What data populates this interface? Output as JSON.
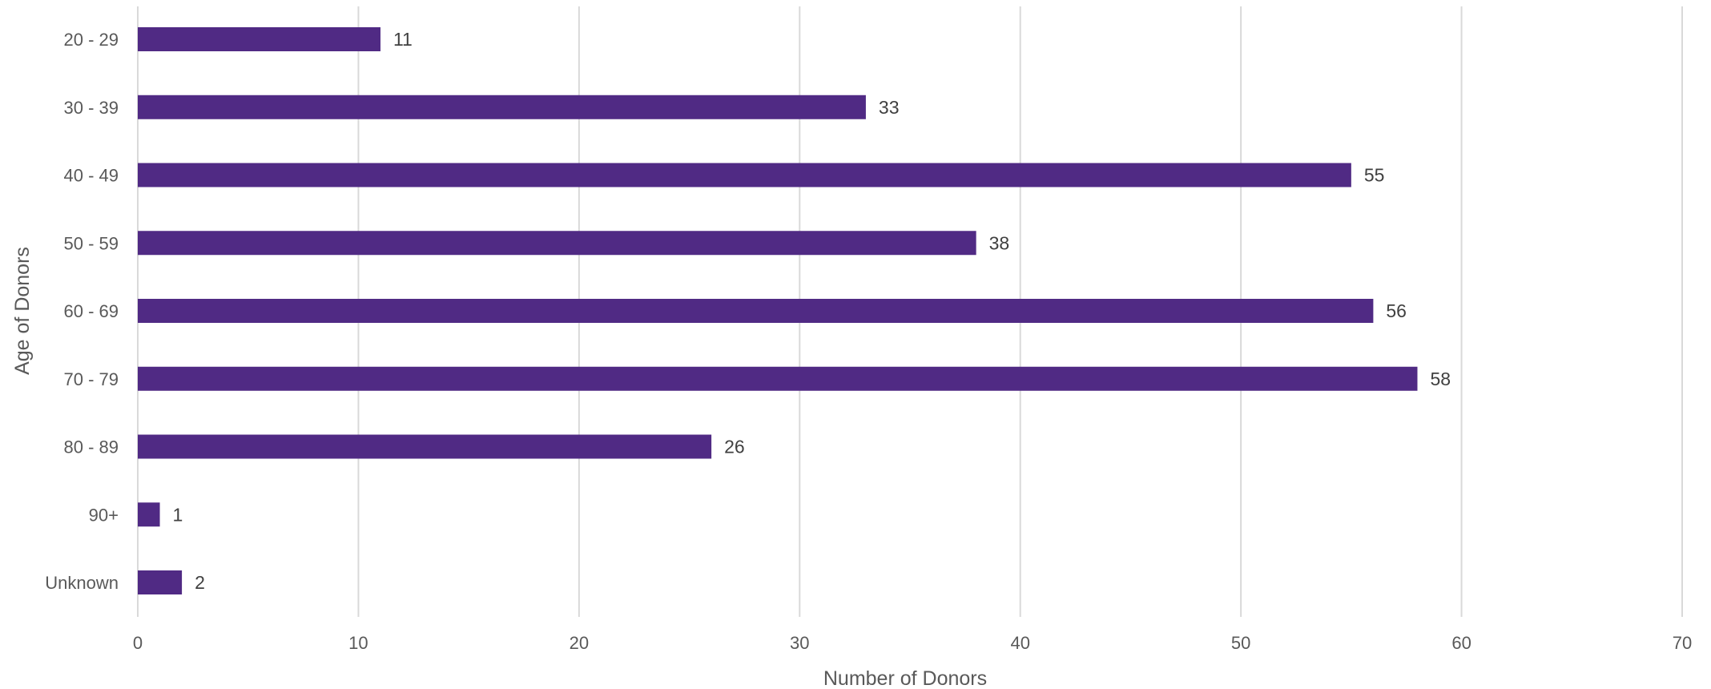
{
  "chart_data": {
    "type": "bar",
    "orientation": "horizontal",
    "title": "",
    "xlabel": "Number of Donors",
    "ylabel": "Age of Donors",
    "categories": [
      "20 - 29",
      "30 - 39",
      "40 - 49",
      "50 - 59",
      "60 - 69",
      "70 - 79",
      "80 - 89",
      "90+",
      "Unknown"
    ],
    "values": [
      11,
      33,
      55,
      38,
      56,
      58,
      26,
      1,
      2
    ],
    "xlim": [
      0,
      70
    ],
    "xticks": [
      0,
      10,
      20,
      30,
      40,
      50,
      60,
      70
    ],
    "grid": "vertical",
    "legend": "none",
    "data_labels": true,
    "colors": {
      "bar": "#502a84",
      "grid": "#d9d9d9",
      "tick_text": "#595959",
      "label_text": "#404040"
    }
  }
}
